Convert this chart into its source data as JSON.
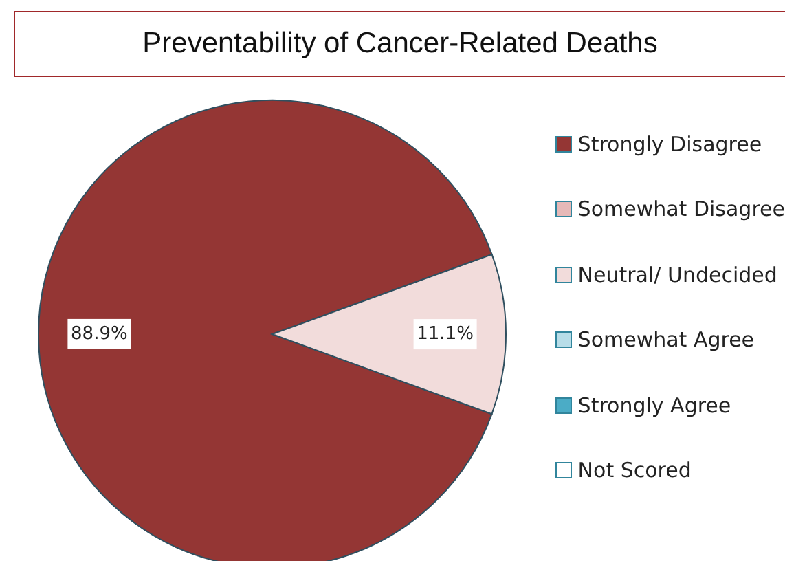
{
  "chart_data": {
    "type": "pie",
    "title": "Preventability of Cancer-Related Deaths",
    "categories": [
      "Strongly Disagree",
      "Somewhat Disagree",
      "Neutral/ Undecided",
      "Somewhat Agree",
      "Strongly Agree",
      "Not Scored"
    ],
    "values": [
      88.9,
      0,
      11.1,
      0,
      0,
      0
    ],
    "colors": [
      "#943634",
      "#e6b9b8",
      "#f2dcdb",
      "#b7dde8",
      "#4bacc6",
      "#ffffff"
    ],
    "value_labels": [
      "88.9%",
      null,
      "11.1%",
      null,
      null,
      null
    ],
    "legend": "right"
  }
}
